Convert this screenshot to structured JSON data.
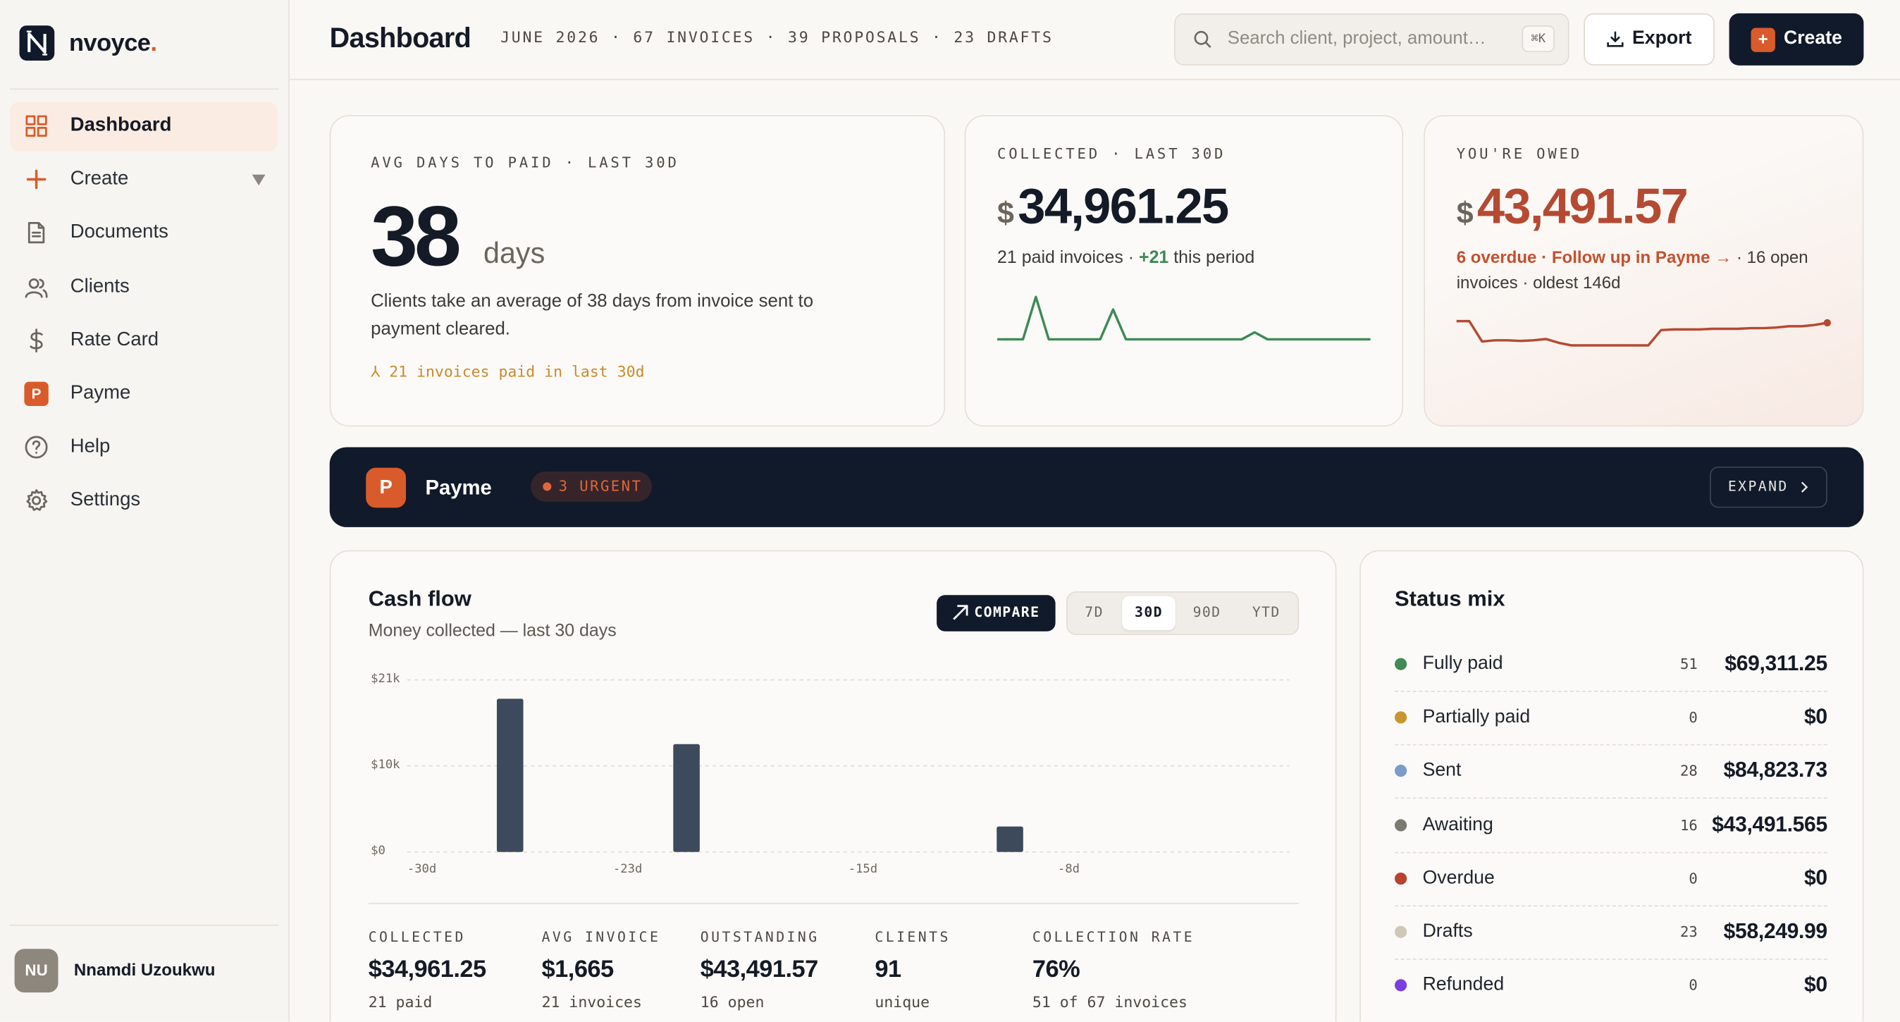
{
  "sidebar": {
    "brand": "nvoyce",
    "brand_suffix": ".",
    "nav": [
      {
        "label": "Dashboard"
      },
      {
        "label": "Create"
      },
      {
        "label": "Documents"
      },
      {
        "label": "Clients"
      },
      {
        "label": "Rate Card"
      },
      {
        "label": "Payme",
        "badge": "P"
      },
      {
        "label": "Help"
      },
      {
        "label": "Settings"
      }
    ],
    "user": {
      "initials": "NU",
      "name": "Nnamdi Uzoukwu"
    }
  },
  "header": {
    "title": "Dashboard",
    "meta": "JUNE 2026 · 67 INVOICES · 39 PROPOSALS · 23 DRAFTS",
    "search_placeholder": "Search client, project, amount…",
    "shortcut": "⌘K",
    "export": "Export",
    "create_icon": "+",
    "create": "Create"
  },
  "kpis": {
    "avg_days": {
      "label": "AVG DAYS TO PAID · LAST 30D",
      "value": "38",
      "unit": "days",
      "description": "Clients take an average of 38 days from invoice sent to payment cleared.",
      "footnote": "⅄ 21 invoices paid in last 30d"
    },
    "collected": {
      "label": "COLLECTED · LAST 30D",
      "currency": "$",
      "amount": "34,961.25",
      "note": "21 paid invoices ·",
      "delta": "+21",
      "delta_suffix": "this period"
    },
    "owed": {
      "label": "YOU'RE OWED",
      "currency": "$",
      "amount": "43,491.57",
      "alert": "6 overdue · Follow up in Payme →",
      "note": "· 16 open invoices · oldest 146d",
      "trend": [
        44000,
        44000,
        37600,
        38000,
        38000,
        37800,
        38000,
        38400,
        37200,
        36400,
        36400,
        36400,
        36400,
        36400,
        36400,
        36400,
        41200,
        41400,
        41400,
        41400,
        41600,
        41600,
        41600,
        41800,
        41800,
        42000,
        42400,
        42400,
        42800,
        43491.57
      ]
    }
  },
  "banner": {
    "badge": "P",
    "title": "Payme",
    "urgent": "3 URGENT",
    "expand": "EXPAND"
  },
  "cash_flow": {
    "title": "Cash flow",
    "subtitle": "Money collected — last 30 days",
    "compare": "COMPARE",
    "ranges": [
      "7D",
      "30D",
      "90D",
      "YTD"
    ],
    "chart_data": {
      "type": "bar",
      "categories": [
        "-30d",
        null,
        null,
        null,
        null,
        null,
        null,
        "-23d",
        null,
        null,
        null,
        null,
        null,
        null,
        null,
        "-15d",
        null,
        null,
        null,
        null,
        null,
        null,
        "-8d",
        null,
        null,
        null,
        null,
        null,
        null,
        null
      ],
      "values": [
        0,
        0,
        0,
        18700,
        0,
        0,
        0,
        0,
        0,
        13160,
        0,
        0,
        0,
        0,
        0,
        0,
        0,
        0,
        0,
        0,
        3101.25,
        0,
        0,
        0,
        0,
        0,
        0,
        0,
        0,
        0
      ],
      "color": "#3d4a5c",
      "ylim": [
        0,
        21000
      ],
      "yticks": [
        {
          "value": 0,
          "label": "$0"
        },
        {
          "value": 10500,
          "label": "$10k"
        },
        {
          "value": 21000,
          "label": "$21k"
        }
      ],
      "grid": true
    },
    "stats": [
      {
        "label": "COLLECTED",
        "value": "$34,961.25",
        "sub": "21 paid"
      },
      {
        "label": "AVG INVOICE",
        "value": "$1,665",
        "sub": "21 invoices"
      },
      {
        "label": "OUTSTANDING",
        "value": "$43,491.57",
        "sub": "16 open"
      },
      {
        "label": "CLIENTS",
        "value": "91",
        "sub": "unique"
      },
      {
        "label": "COLLECTION RATE",
        "value": "76%",
        "sub": "51 of 67 invoices"
      }
    ]
  },
  "status_mix": {
    "title": "Status mix",
    "rows": [
      {
        "name": "Fully paid",
        "color": "#3f8a57",
        "count": "51",
        "amount": "$69,311.25"
      },
      {
        "name": "Partially paid",
        "color": "#c9952f",
        "count": "0",
        "amount": "$0"
      },
      {
        "name": "Sent",
        "color": "#7b9cc8",
        "count": "28",
        "amount": "$84,823.73"
      },
      {
        "name": "Awaiting",
        "color": "#7b7a72",
        "count": "16",
        "amount": "$43,491.565"
      },
      {
        "name": "Overdue",
        "color": "#b8432f",
        "count": "0",
        "amount": "$0"
      },
      {
        "name": "Drafts",
        "color": "#cfc8b8",
        "count": "23",
        "amount": "$58,249.99"
      },
      {
        "name": "Refunded",
        "color": "#7b3fe0",
        "count": "0",
        "amount": "$0"
      }
    ]
  }
}
